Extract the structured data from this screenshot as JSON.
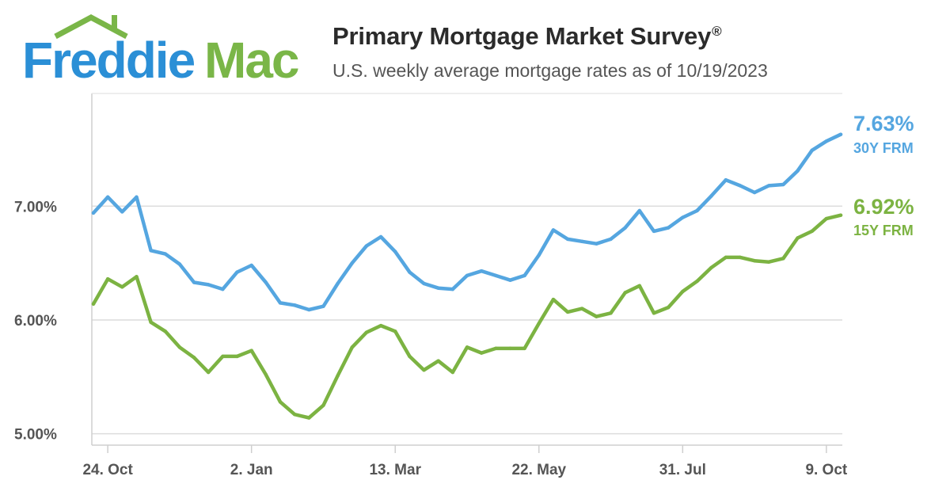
{
  "brand": {
    "logo_text": "Freddie Mac",
    "word1": "Freddie",
    "word2": "Mac",
    "blue": "#2b8fd6",
    "green": "#7ab648"
  },
  "header": {
    "title": "Primary Mortgage Market Survey",
    "title_mark": "®",
    "subtitle": "U.S. weekly average mortgage rates as of 10/19/2023"
  },
  "chart_data": {
    "type": "line",
    "title": "Primary Mortgage Market Survey®",
    "subtitle": "U.S. weekly average mortgage rates as of 10/19/2023",
    "xlabel": "",
    "ylabel": "",
    "ylim": [
      4.9,
      7.99
    ],
    "y_ticks": [
      {
        "value": 5.0,
        "label": "5.00%"
      },
      {
        "value": 6.0,
        "label": "6.00%"
      },
      {
        "value": 7.0,
        "label": "7.00%"
      }
    ],
    "x_ticks": [
      {
        "index": 1,
        "label": "24. Oct"
      },
      {
        "index": 11,
        "label": "2. Jan"
      },
      {
        "index": 21,
        "label": "13. Mar"
      },
      {
        "index": 31,
        "label": "22. May"
      },
      {
        "index": 41,
        "label": "31. Jul"
      },
      {
        "index": 51,
        "label": "9. Oct"
      }
    ],
    "x": [
      "2022-10-20",
      "2022-10-27",
      "2022-11-03",
      "2022-11-10",
      "2022-11-17",
      "2022-11-23",
      "2022-12-01",
      "2022-12-08",
      "2022-12-15",
      "2022-12-22",
      "2022-12-29",
      "2023-01-05",
      "2023-01-12",
      "2023-01-19",
      "2023-01-26",
      "2023-02-02",
      "2023-02-09",
      "2023-02-16",
      "2023-02-23",
      "2023-03-02",
      "2023-03-09",
      "2023-03-16",
      "2023-03-23",
      "2023-03-30",
      "2023-04-06",
      "2023-04-13",
      "2023-04-20",
      "2023-04-27",
      "2023-05-04",
      "2023-05-11",
      "2023-05-18",
      "2023-05-25",
      "2023-06-01",
      "2023-06-08",
      "2023-06-15",
      "2023-06-22",
      "2023-06-29",
      "2023-07-06",
      "2023-07-13",
      "2023-07-20",
      "2023-07-27",
      "2023-08-03",
      "2023-08-10",
      "2023-08-17",
      "2023-08-24",
      "2023-08-31",
      "2023-09-07",
      "2023-09-14",
      "2023-09-21",
      "2023-09-28",
      "2023-10-05",
      "2023-10-12",
      "2023-10-19"
    ],
    "grid": {
      "y": true,
      "x": false
    },
    "series": [
      {
        "name": "30Y FRM",
        "color": "#55a6e0",
        "end_label": "7.63%",
        "values": [
          6.94,
          7.08,
          6.95,
          7.08,
          6.61,
          6.58,
          6.49,
          6.33,
          6.31,
          6.27,
          6.42,
          6.48,
          6.33,
          6.15,
          6.13,
          6.09,
          6.12,
          6.32,
          6.5,
          6.65,
          6.73,
          6.6,
          6.42,
          6.32,
          6.28,
          6.27,
          6.39,
          6.43,
          6.39,
          6.35,
          6.39,
          6.57,
          6.79,
          6.71,
          6.69,
          6.67,
          6.71,
          6.81,
          6.96,
          6.78,
          6.81,
          6.9,
          6.96,
          7.09,
          7.23,
          7.18,
          7.12,
          7.18,
          7.19,
          7.31,
          7.49,
          7.57,
          7.63
        ]
      },
      {
        "name": "15Y FRM",
        "color": "#7cb342",
        "end_label": "6.92%",
        "values": [
          6.14,
          6.36,
          6.29,
          6.38,
          5.98,
          5.9,
          5.76,
          5.67,
          5.54,
          5.68,
          5.68,
          5.73,
          5.52,
          5.28,
          5.17,
          5.14,
          5.25,
          5.51,
          5.76,
          5.89,
          5.95,
          5.9,
          5.68,
          5.56,
          5.64,
          5.54,
          5.76,
          5.71,
          5.75,
          5.75,
          5.75,
          5.97,
          6.18,
          6.07,
          6.1,
          6.03,
          6.06,
          6.24,
          6.3,
          6.06,
          6.11,
          6.25,
          6.34,
          6.46,
          6.55,
          6.55,
          6.52,
          6.51,
          6.54,
          6.72,
          6.78,
          6.89,
          6.92
        ]
      }
    ]
  }
}
